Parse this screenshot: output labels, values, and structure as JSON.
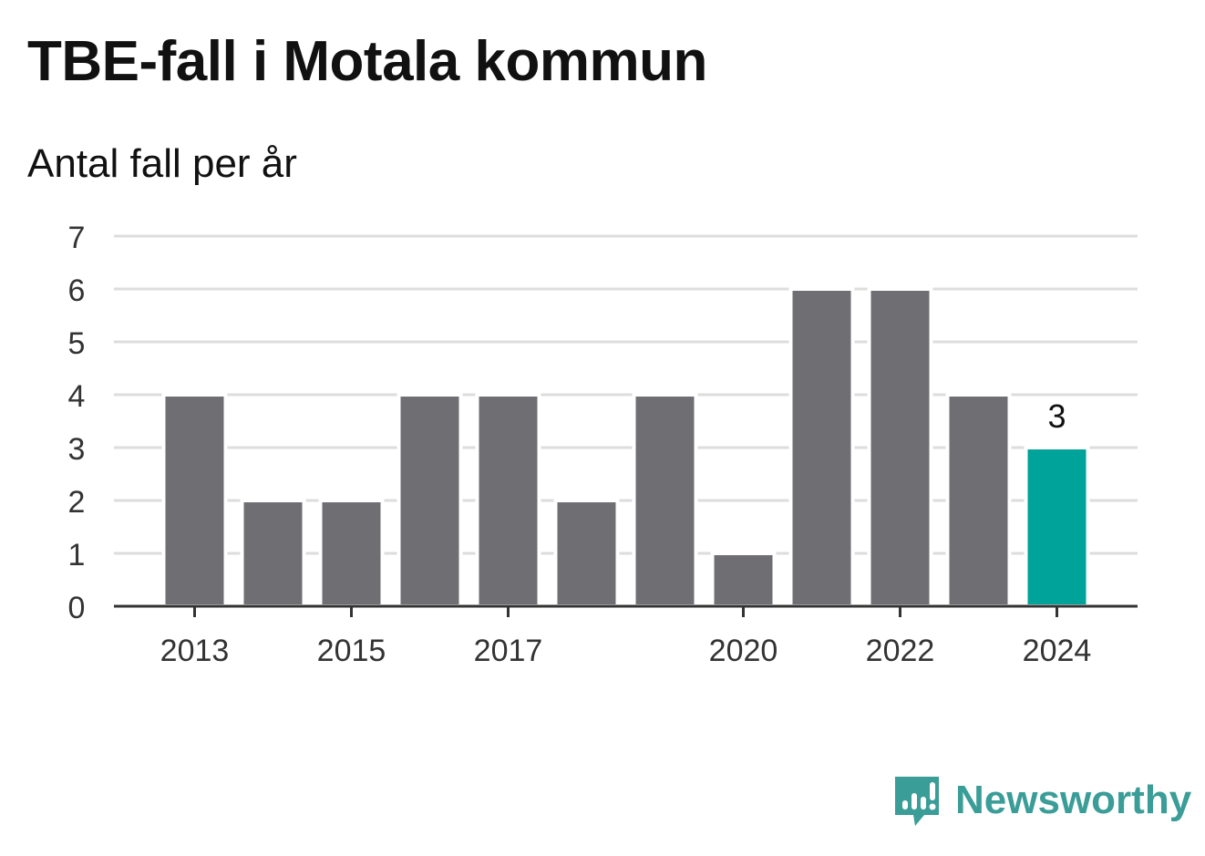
{
  "chart_data": {
    "type": "bar",
    "title": "TBE-fall i Motala kommun",
    "subtitle": "Antal fall per år",
    "categories": [
      "2013",
      "2014",
      "2015",
      "2016",
      "2017",
      "2018",
      "2019",
      "2020",
      "2021",
      "2022",
      "2023",
      "2024"
    ],
    "values": [
      4,
      2,
      2,
      4,
      4,
      2,
      4,
      1,
      6,
      6,
      4,
      3
    ],
    "shown_tick_labels": [
      "2013",
      "2015",
      "2017",
      "2020",
      "2022",
      "2024"
    ],
    "y_ticks": [
      "0",
      "1",
      "2",
      "3",
      "4",
      "5",
      "6",
      "7"
    ],
    "ylim": [
      0,
      7
    ],
    "grid": true,
    "highlight": {
      "category": "2024",
      "label": "3"
    },
    "colors": {
      "bar": "#6f6e73",
      "highlight": "#00a39a",
      "grid": "#dddddd",
      "axis": "#333333"
    }
  },
  "brand": {
    "name": "Newsworthy",
    "color": "#3a9d98",
    "icon": "newsworthy-logo-icon"
  }
}
